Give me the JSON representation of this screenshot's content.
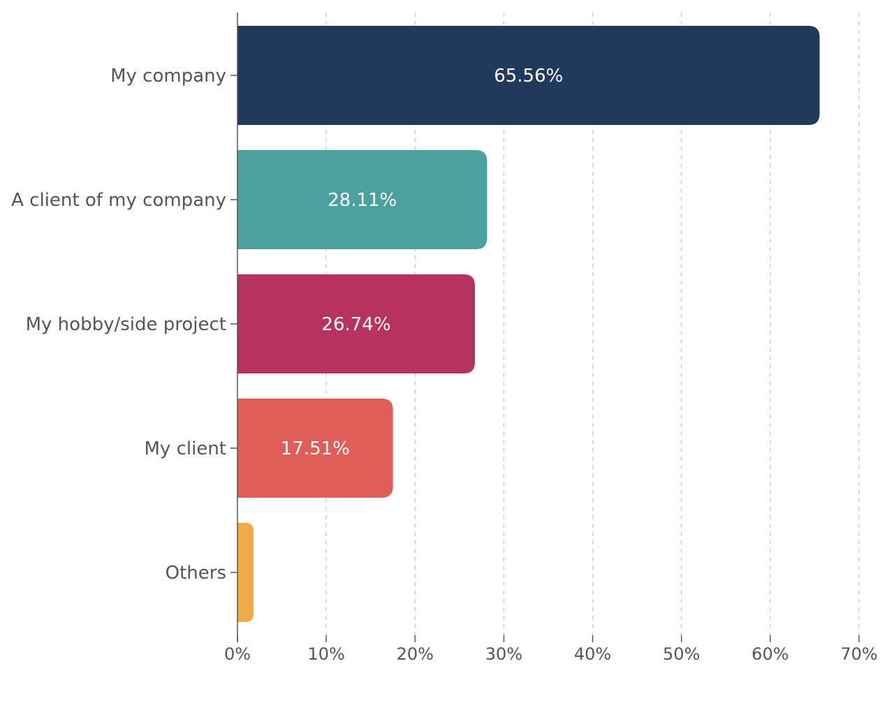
{
  "chart_data": {
    "type": "bar",
    "orientation": "horizontal",
    "categories": [
      "My company",
      "A client of my company",
      "My hobby/side project",
      "My client",
      "Others"
    ],
    "values": [
      65.56,
      28.11,
      26.74,
      17.51,
      1.8
    ],
    "value_labels": [
      "65.56%",
      "28.11%",
      "26.74%",
      "17.51%",
      ""
    ],
    "colors": [
      "#213a5c",
      "#4aa19f",
      "#b8325f",
      "#dd5f58",
      "#f2aa46"
    ],
    "x_ticks": [
      "0%",
      "10%",
      "20%",
      "30%",
      "40%",
      "50%",
      "60%",
      "70%"
    ],
    "xlim": [
      0,
      70
    ],
    "grid": true,
    "title": "",
    "xlabel": "",
    "ylabel": ""
  }
}
